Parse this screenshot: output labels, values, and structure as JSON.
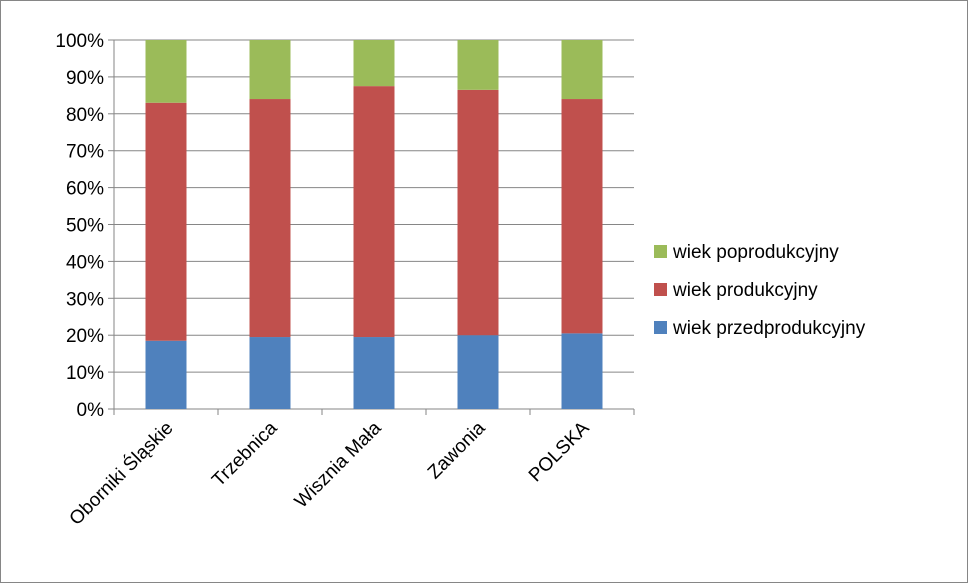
{
  "chart_data": {
    "type": "bar",
    "stacked": true,
    "percent": true,
    "categories": [
      "Oborniki Śląskie",
      "Trzebnica",
      "Wisznia Mała",
      "Zawonia",
      "POLSKA"
    ],
    "series": [
      {
        "name": "wiek przedprodukcyjny",
        "color": "#4F81BD",
        "values": [
          18.5,
          19.5,
          19.5,
          20,
          20.5
        ]
      },
      {
        "name": "wiek produkcyjny",
        "color": "#C0504D",
        "values": [
          64.5,
          64.5,
          68,
          66.5,
          63.5
        ]
      },
      {
        "name": "wiek poprodukcyjny",
        "color": "#9BBB59",
        "values": [
          17,
          16,
          12.5,
          13.5,
          16
        ]
      }
    ],
    "y_ticks": [
      "0%",
      "10%",
      "20%",
      "30%",
      "40%",
      "50%",
      "60%",
      "70%",
      "80%",
      "90%",
      "100%"
    ],
    "ylim": [
      0,
      100
    ],
    "grid": true,
    "legend_position": "right",
    "legend_order": [
      "wiek poprodukcyjny",
      "wiek produkcyjny",
      "wiek przedprodukcyjny"
    ]
  }
}
